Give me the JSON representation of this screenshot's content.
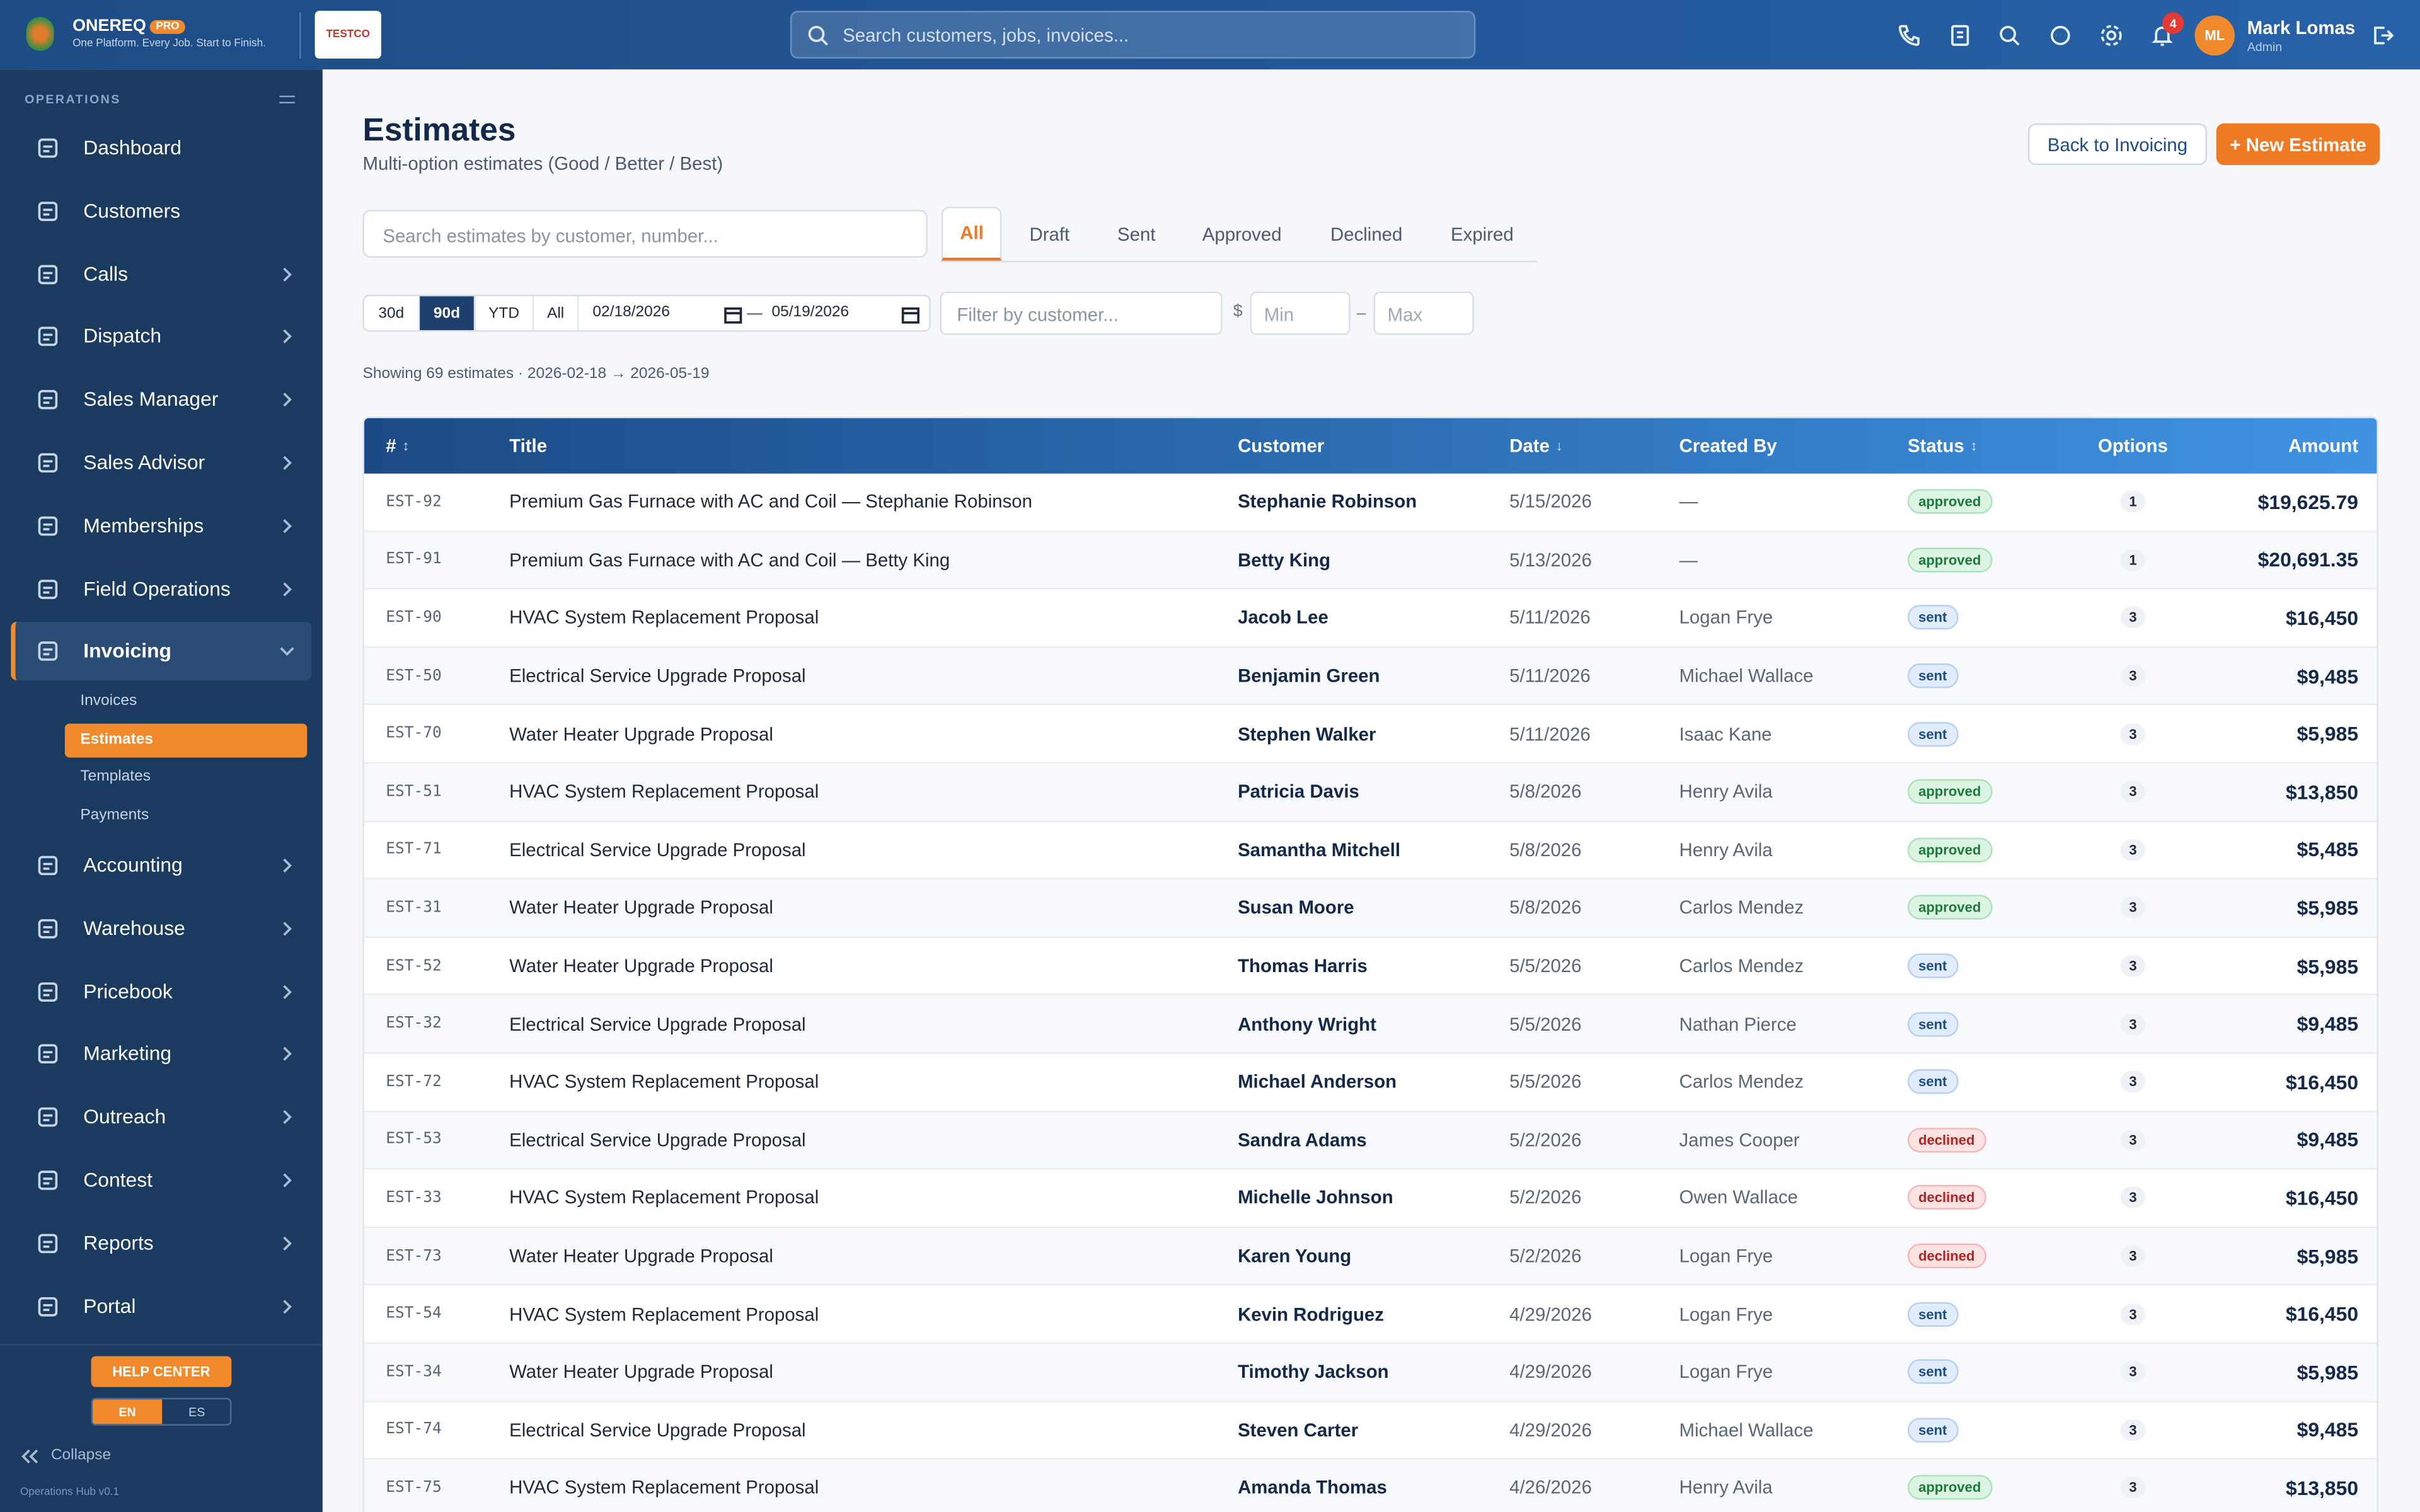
{
  "header": {
    "brand": "ONEREQ",
    "badge": "PRO",
    "tagline": "One Platform. Every Job. Start to Finish.",
    "logo_text": "TESTCO",
    "search_placeholder": "Search customers, jobs, invoices...",
    "notifications": 4,
    "user_initials": "ML",
    "user_name": "Mark Lomas",
    "user_role": "Admin"
  },
  "sidebar": {
    "section": "OPERATIONS",
    "items": [
      "Dashboard",
      "Customers",
      "Calls",
      "Dispatch",
      "Sales Manager",
      "Sales Advisor",
      "Memberships",
      "Field Operations",
      "Invoicing",
      "Accounting",
      "Warehouse",
      "Pricebook",
      "Marketing",
      "Outreach",
      "Contest",
      "Reports",
      "Portal"
    ],
    "sub_items": [
      "Invoices",
      "Estimates",
      "Templates",
      "Payments"
    ],
    "help": "HELP CENTER",
    "languages": [
      "EN",
      "ES"
    ],
    "collapse": "Collapse",
    "version": "Operations Hub v0.1"
  },
  "page": {
    "title": "Estimates",
    "subtitle": "Multi-option estimates (Good / Better / Best)",
    "back_button": "Back to Invoicing",
    "new_button": "+ New Estimate",
    "search_placeholder": "Search estimates by customer, number...",
    "tabs": [
      "All",
      "Draft",
      "Sent",
      "Approved",
      "Declined",
      "Expired"
    ],
    "ranges": [
      "30d",
      "90d",
      "YTD",
      "All"
    ],
    "date_from": "02/18/2026",
    "date_to": "05/19/2026",
    "customer_placeholder": "Filter by customer...",
    "currency": "$",
    "min_placeholder": "Min",
    "max_placeholder": "Max",
    "summary": "Showing 69 estimates · 2026-02-18 → 2026-05-19"
  },
  "table": {
    "columns": [
      "#",
      "Title",
      "Customer",
      "Date",
      "Created By",
      "Status",
      "Options",
      "Amount"
    ],
    "rows": [
      [
        "EST-92",
        "Premium Gas Furnace with AC and Coil — Stephanie Robinson",
        "Stephanie Robinson",
        "5/15/2026",
        "—",
        "approved",
        1,
        "$19,625.79"
      ],
      [
        "EST-91",
        "Premium Gas Furnace with AC and Coil — Betty King",
        "Betty King",
        "5/13/2026",
        "—",
        "approved",
        1,
        "$20,691.35"
      ],
      [
        "EST-90",
        "HVAC System Replacement Proposal",
        "Jacob Lee",
        "5/11/2026",
        "Logan Frye",
        "sent",
        3,
        "$16,450"
      ],
      [
        "EST-50",
        "Electrical Service Upgrade Proposal",
        "Benjamin Green",
        "5/11/2026",
        "Michael Wallace",
        "sent",
        3,
        "$9,485"
      ],
      [
        "EST-70",
        "Water Heater Upgrade Proposal",
        "Stephen Walker",
        "5/11/2026",
        "Isaac Kane",
        "sent",
        3,
        "$5,985"
      ],
      [
        "EST-51",
        "HVAC System Replacement Proposal",
        "Patricia Davis",
        "5/8/2026",
        "Henry Avila",
        "approved",
        3,
        "$13,850"
      ],
      [
        "EST-71",
        "Electrical Service Upgrade Proposal",
        "Samantha Mitchell",
        "5/8/2026",
        "Henry Avila",
        "approved",
        3,
        "$5,485"
      ],
      [
        "EST-31",
        "Water Heater Upgrade Proposal",
        "Susan Moore",
        "5/8/2026",
        "Carlos Mendez",
        "approved",
        3,
        "$5,985"
      ],
      [
        "EST-52",
        "Water Heater Upgrade Proposal",
        "Thomas Harris",
        "5/5/2026",
        "Carlos Mendez",
        "sent",
        3,
        "$5,985"
      ],
      [
        "EST-32",
        "Electrical Service Upgrade Proposal",
        "Anthony Wright",
        "5/5/2026",
        "Nathan Pierce",
        "sent",
        3,
        "$9,485"
      ],
      [
        "EST-72",
        "HVAC System Replacement Proposal",
        "Michael Anderson",
        "5/5/2026",
        "Carlos Mendez",
        "sent",
        3,
        "$16,450"
      ],
      [
        "EST-53",
        "Electrical Service Upgrade Proposal",
        "Sandra Adams",
        "5/2/2026",
        "James Cooper",
        "declined",
        3,
        "$9,485"
      ],
      [
        "EST-33",
        "HVAC System Replacement Proposal",
        "Michelle Johnson",
        "5/2/2026",
        "Owen Wallace",
        "declined",
        3,
        "$16,450"
      ],
      [
        "EST-73",
        "Water Heater Upgrade Proposal",
        "Karen Young",
        "5/2/2026",
        "Logan Frye",
        "declined",
        3,
        "$5,985"
      ],
      [
        "EST-54",
        "HVAC System Replacement Proposal",
        "Kevin Rodriguez",
        "4/29/2026",
        "Logan Frye",
        "sent",
        3,
        "$16,450"
      ],
      [
        "EST-34",
        "Water Heater Upgrade Proposal",
        "Timothy Jackson",
        "4/29/2026",
        "Logan Frye",
        "sent",
        3,
        "$5,985"
      ],
      [
        "EST-74",
        "Electrical Service Upgrade Proposal",
        "Steven Carter",
        "4/29/2026",
        "Michael Wallace",
        "sent",
        3,
        "$9,485"
      ],
      [
        "EST-75",
        "HVAC System Replacement Proposal",
        "Amanda Thomas",
        "4/26/2026",
        "Henry Avila",
        "approved",
        3,
        "$13,850"
      ]
    ]
  }
}
